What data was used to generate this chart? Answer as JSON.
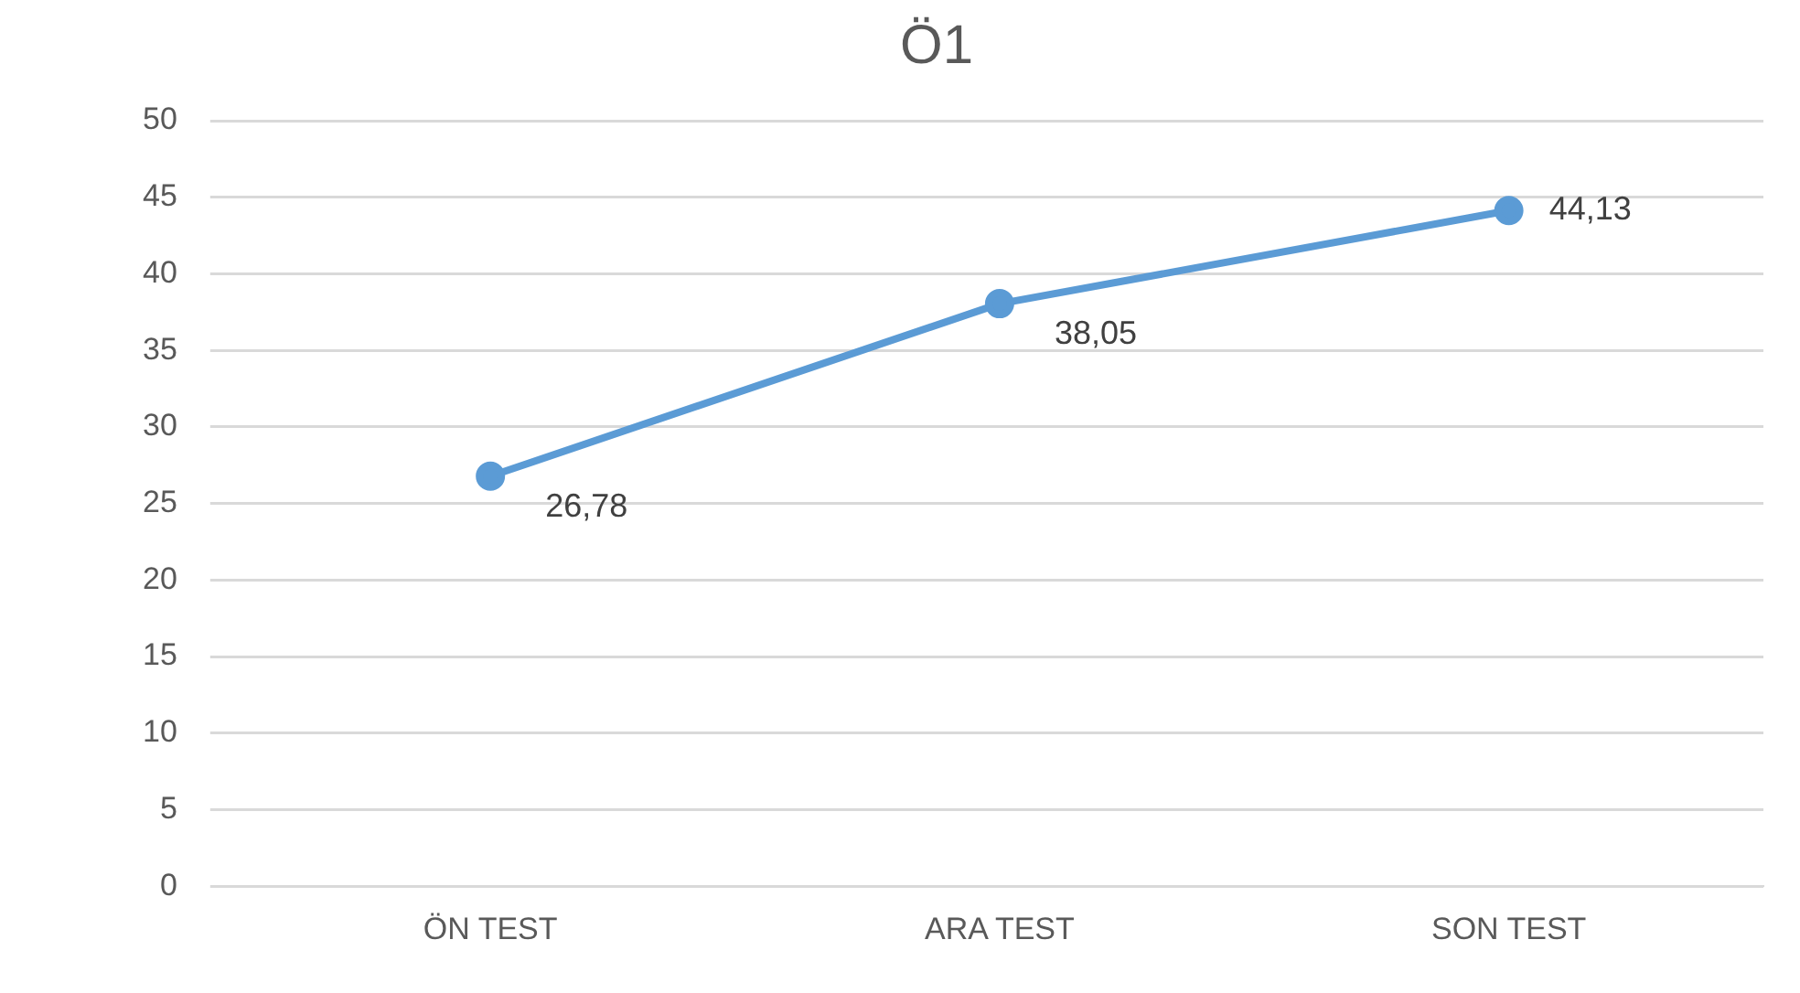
{
  "chart_data": {
    "type": "line",
    "title": "Ö1",
    "categories": [
      "ÖN TEST",
      "ARA TEST",
      "SON TEST"
    ],
    "series": [
      {
        "color": "#5b9bd5",
        "values": [
          26.78,
          38.05,
          44.13
        ],
        "value_labels": [
          "26,78",
          "38,05",
          "44,13"
        ]
      }
    ],
    "ylim": [
      0,
      50
    ],
    "yticks": [
      0,
      5,
      10,
      15,
      20,
      25,
      30,
      35,
      40,
      45,
      50
    ],
    "grid": "y",
    "legend": false,
    "marker": "circle",
    "line_style": "solid"
  }
}
